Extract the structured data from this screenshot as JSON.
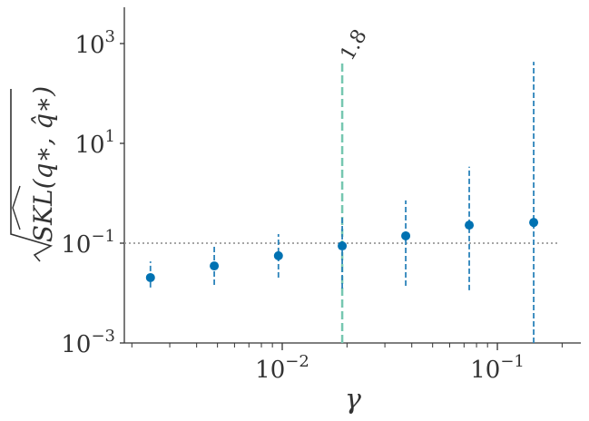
{
  "chart_data": {
    "type": "errorbar",
    "x_label": "γ",
    "y_label": "SKL(q∗, q̂∗)",
    "x": [
      0.00244,
      0.00483,
      0.0096,
      0.019,
      0.0375,
      0.074,
      0.1475
    ],
    "values": [
      0.0204,
      0.035,
      0.056,
      0.088,
      0.14,
      0.23,
      0.26
    ],
    "lower": [
      0.0129,
      0.0146,
      0.0204,
      0.0123,
      0.014,
      0.0114,
      0.001
    ],
    "upper": [
      0.043,
      0.085,
      0.152,
      0.35,
      0.72,
      3.4,
      430
    ],
    "color": "#0072b2",
    "error_color": "#2b83ba",
    "annotation": {
      "x": 0.019,
      "ymin": 0.001,
      "ymax": 430,
      "text": "1.8",
      "color": "#76c7b0"
    },
    "hline": {
      "value": 0.1,
      "color": "#999999"
    },
    "xscale": "log",
    "yscale": "log",
    "xlim": [
      0.001845,
      0.2443
    ],
    "ylim": [
      0.001,
      5336
    ],
    "xticks": [
      {
        "value": 0.01,
        "label": [
          "10",
          "−2"
        ]
      },
      {
        "value": 0.1,
        "label": [
          "10",
          "−1"
        ]
      }
    ],
    "xminorticks": [
      0.002,
      0.003,
      0.004,
      0.005,
      0.006,
      0.007,
      0.008,
      0.009,
      0.02,
      0.03,
      0.04,
      0.05,
      0.06,
      0.07,
      0.08,
      0.09,
      0.2
    ],
    "yticks": [
      {
        "value": 0.001,
        "label": [
          "10",
          "−3"
        ]
      },
      {
        "value": 0.1,
        "label": [
          "10",
          "−1"
        ]
      },
      {
        "value": 10,
        "label": [
          "10",
          "1"
        ]
      },
      {
        "value": 1000,
        "label": [
          "10",
          "3"
        ]
      }
    ]
  }
}
